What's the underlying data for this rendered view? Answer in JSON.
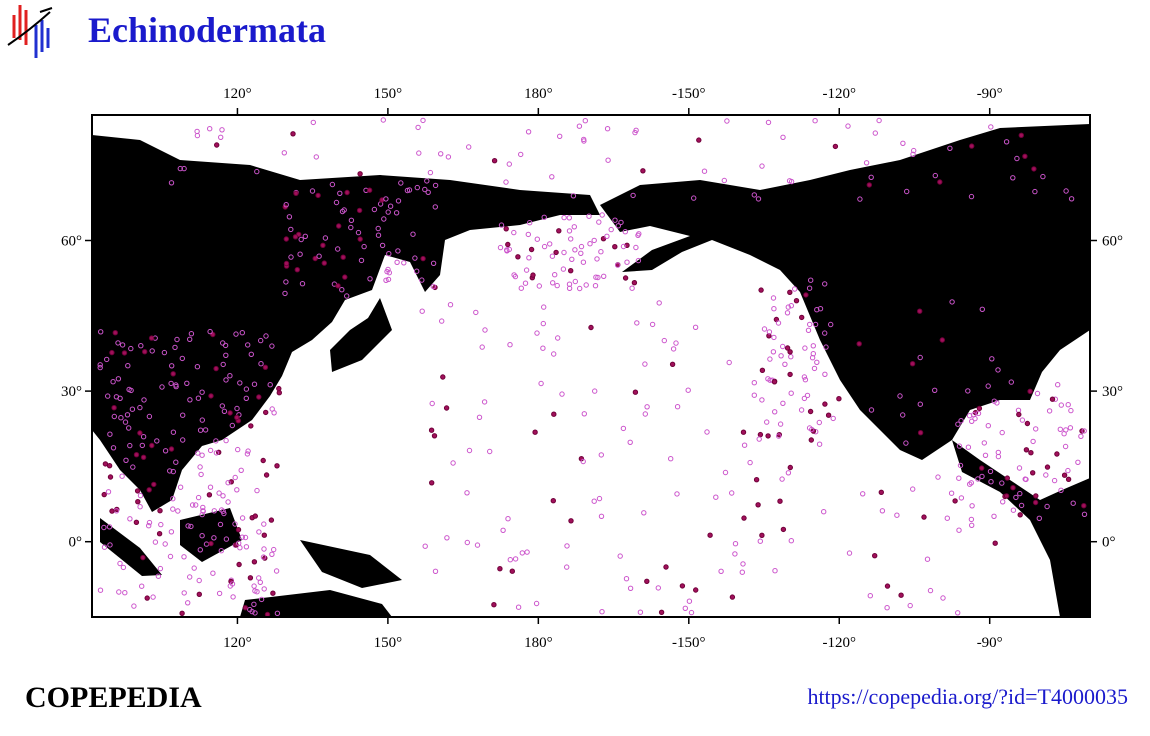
{
  "header": {
    "title": "Echinodermata"
  },
  "map": {
    "xlim": [
      91,
      -70
    ],
    "ylim": [
      -15,
      85
    ],
    "xticks": [
      {
        "value": 120,
        "label": "120°"
      },
      {
        "value": 150,
        "label": "150°"
      },
      {
        "value": 180,
        "label": "180°"
      },
      {
        "value": -150,
        "label": "-150°"
      },
      {
        "value": -120,
        "label": "-120°"
      },
      {
        "value": -90,
        "label": "-90°"
      }
    ],
    "yticks": [
      {
        "value": 0,
        "label": "0°"
      },
      {
        "value": 30,
        "label": "30°"
      },
      {
        "value": 60,
        "label": "60°"
      }
    ]
  },
  "footer": {
    "brand": "COPEPEDIA",
    "url": "https://copepedia.org/?id=T4000035"
  }
}
